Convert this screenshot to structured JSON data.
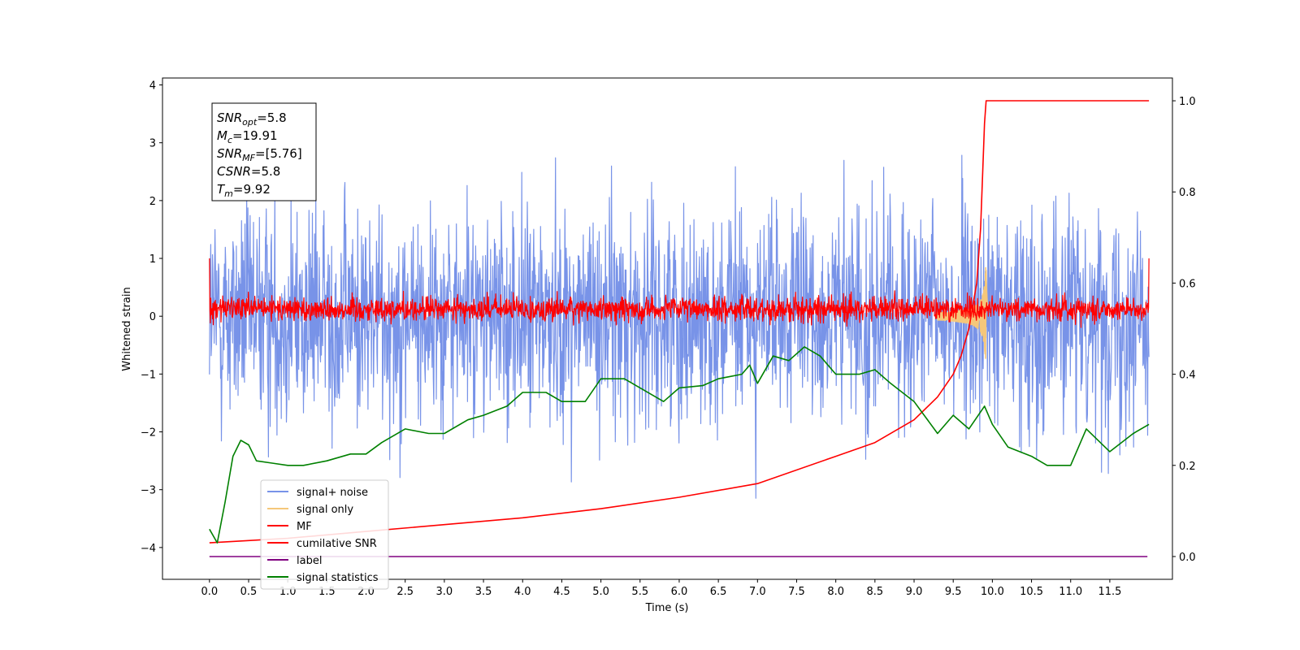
{
  "chart_data": {
    "type": "line",
    "xlabel": "Time (s)",
    "ylabel": "Whitened strain",
    "xlim": [
      -0.6,
      12.3
    ],
    "ylim": [
      -4.55,
      4.12
    ],
    "y2lim": [
      -0.05,
      1.05
    ],
    "x_ticks": [
      "0.0",
      "0.5",
      "1.0",
      "1.5",
      "2.0",
      "2.5",
      "3.0",
      "3.5",
      "4.0",
      "4.5",
      "5.0",
      "5.5",
      "6.0",
      "6.5",
      "7.0",
      "7.5",
      "8.0",
      "8.5",
      "9.0",
      "9.5",
      "10.0",
      "10.5",
      "11.0",
      "11.5"
    ],
    "y_ticks": [
      "4",
      "3",
      "2",
      "1",
      "0",
      "−1",
      "−2",
      "−3",
      "−4"
    ],
    "y2_ticks": [
      "1.0",
      "0.8",
      "0.6",
      "0.4",
      "0.2",
      "0.0"
    ],
    "grid": false,
    "legend_position": "lower-left",
    "annotation": [
      {
        "base": "SNR",
        "sub": "opt",
        "value": "=5.8"
      },
      {
        "base": "M",
        "sub": "c",
        "value": "=19.91"
      },
      {
        "base": "SNR",
        "sub": "MF",
        "value": "=[5.76]"
      },
      {
        "base": "CSNR",
        "sub": "",
        "value": "=5.8"
      },
      {
        "base": "T",
        "sub": "m",
        "value": "=9.92"
      }
    ],
    "series": [
      {
        "name": "signal+ noise",
        "color": "#7893e8",
        "axis": "left",
        "kind": "noise",
        "x_range": [
          0.0,
          12.0
        ],
        "y_spread": [
          -3.7,
          3.7
        ]
      },
      {
        "name": "signal only",
        "color": "#f5c77a",
        "axis": "left",
        "kind": "chirp",
        "peak_time": 9.92,
        "peak_amplitude": 1.2
      },
      {
        "name": "MF",
        "color": "#ff0000",
        "axis": "left",
        "kind": "noise",
        "x_range": [
          0.0,
          12.0
        ],
        "y_spread": [
          -0.3,
          0.55
        ]
      },
      {
        "name": "cumilative SNR",
        "color": "#ff0000",
        "axis": "right",
        "x": [
          0.0,
          0.5,
          1.0,
          2.0,
          3.0,
          4.0,
          5.0,
          6.0,
          7.0,
          8.0,
          8.5,
          9.0,
          9.3,
          9.5,
          9.6,
          9.7,
          9.8,
          9.85,
          9.9,
          9.92,
          9.95,
          12.0
        ],
        "values": [
          0.03,
          0.035,
          0.04,
          0.055,
          0.07,
          0.085,
          0.105,
          0.13,
          0.16,
          0.22,
          0.25,
          0.3,
          0.35,
          0.4,
          0.44,
          0.5,
          0.6,
          0.72,
          0.95,
          1.0,
          1.0,
          1.0
        ]
      },
      {
        "name": "label",
        "color": "#800080",
        "axis": "right",
        "x": [
          0.0,
          11.98
        ],
        "values": [
          0.0,
          0.0
        ]
      },
      {
        "name": "signal statistics",
        "color": "#008000",
        "axis": "right",
        "x": [
          0.0,
          0.1,
          0.2,
          0.3,
          0.4,
          0.5,
          0.6,
          0.8,
          1.0,
          1.2,
          1.5,
          1.8,
          2.0,
          2.2,
          2.5,
          2.8,
          3.0,
          3.3,
          3.5,
          3.8,
          4.0,
          4.3,
          4.5,
          4.8,
          5.0,
          5.3,
          5.5,
          5.8,
          6.0,
          6.3,
          6.5,
          6.8,
          6.9,
          7.0,
          7.2,
          7.4,
          7.6,
          7.8,
          8.0,
          8.3,
          8.5,
          8.7,
          9.0,
          9.3,
          9.5,
          9.7,
          9.9,
          10.0,
          10.2,
          10.5,
          10.7,
          11.0,
          11.2,
          11.5,
          11.8,
          12.0
        ],
        "values": [
          0.06,
          0.03,
          0.12,
          0.22,
          0.255,
          0.245,
          0.21,
          0.205,
          0.2,
          0.2,
          0.21,
          0.225,
          0.225,
          0.25,
          0.28,
          0.27,
          0.27,
          0.3,
          0.31,
          0.33,
          0.36,
          0.36,
          0.34,
          0.34,
          0.39,
          0.39,
          0.37,
          0.34,
          0.37,
          0.375,
          0.39,
          0.4,
          0.42,
          0.38,
          0.44,
          0.43,
          0.46,
          0.44,
          0.4,
          0.4,
          0.41,
          0.38,
          0.34,
          0.27,
          0.31,
          0.28,
          0.33,
          0.29,
          0.24,
          0.22,
          0.2,
          0.2,
          0.28,
          0.23,
          0.27,
          0.29
        ]
      }
    ]
  }
}
